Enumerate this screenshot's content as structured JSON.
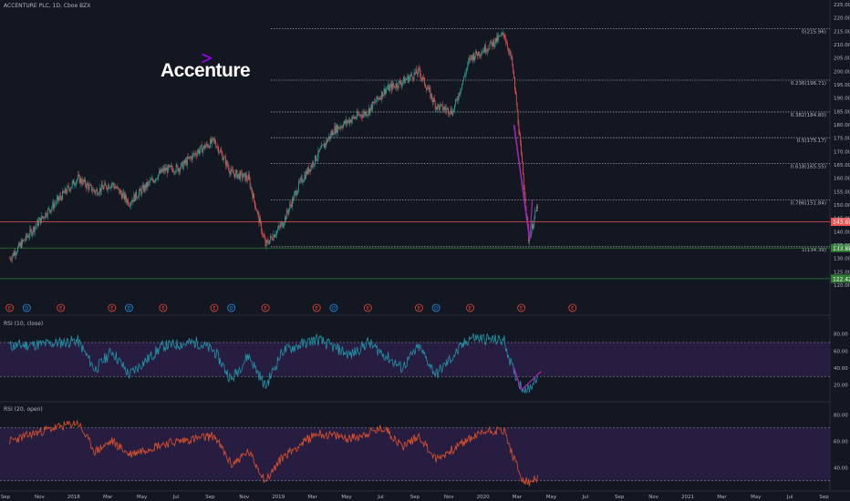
{
  "header": {
    "title": "ACCENTURE PLC, 1D, Cboe BZX"
  },
  "brand": {
    "name": "Accenture",
    "mark": ">"
  },
  "panes": {
    "rsi1_label": "RSI (10, close)",
    "rsi2_label": "RSI (20, open)"
  },
  "colors": {
    "background": "#131722",
    "up": "#26a69a",
    "down": "#ef5350",
    "rsi1": "#2196a8",
    "rsi2": "#e0522a",
    "band": "#2a1e45",
    "annotation": "#9c27b0"
  },
  "chart_data": [
    {
      "type": "candlestick",
      "ylim": [
        120,
        225
      ],
      "y_ticks": [
        "225.00",
        "220.00",
        "215.00",
        "210.00",
        "205.00",
        "200.00",
        "195.00",
        "190.00",
        "185.00",
        "180.00",
        "175.00",
        "170.00",
        "165.00",
        "160.00",
        "155.00",
        "150.00",
        "145.00",
        "140.00",
        "135.00",
        "130.00",
        "125.00",
        "120.00"
      ],
      "x_ticks": [
        "Sep",
        "Nov",
        "2018",
        "Mar",
        "May",
        "Jul",
        "Sep",
        "Nov",
        "2019",
        "Mar",
        "May",
        "Jul",
        "Sep",
        "Nov",
        "2020",
        "Mar",
        "May",
        "Jul",
        "Sep",
        "Nov",
        "2021",
        "Mar",
        "May",
        "Jul",
        "Sep"
      ],
      "close_path": [
        [
          "Sep 2017",
          130
        ],
        [
          "Oct 2017",
          138
        ],
        [
          "Nov 2017",
          146
        ],
        [
          "Dec 2017",
          153
        ],
        [
          "Jan 2018",
          160
        ],
        [
          "Feb 2018",
          155
        ],
        [
          "Mar 2018",
          158
        ],
        [
          "Apr 2018",
          151
        ],
        [
          "May 2018",
          157
        ],
        [
          "Jun 2018",
          163
        ],
        [
          "Jul 2018",
          164
        ],
        [
          "Aug 2018",
          170
        ],
        [
          "Sep 2018",
          174
        ],
        [
          "Oct 2018",
          162
        ],
        [
          "Nov 2018",
          160
        ],
        [
          "Dec 2018",
          135
        ],
        [
          "Jan 2019",
          143
        ],
        [
          "Feb 2019",
          158
        ],
        [
          "Mar 2019",
          168
        ],
        [
          "Apr 2019",
          178
        ],
        [
          "May 2019",
          182
        ],
        [
          "Jun 2019",
          185
        ],
        [
          "Jul 2019",
          193
        ],
        [
          "Aug 2019",
          196
        ],
        [
          "Sep 2019",
          200
        ],
        [
          "Oct 2019",
          187
        ],
        [
          "Nov 2019",
          185
        ],
        [
          "Dec 2019",
          205
        ],
        [
          "Jan 2020",
          209
        ],
        [
          "Feb 2020",
          214
        ],
        [
          "Feb 24 2020",
          203
        ],
        [
          "Mar 05 2020",
          180
        ],
        [
          "Mar 23 2020",
          137
        ],
        [
          "Apr 2020",
          151
        ]
      ],
      "fibonacci": [
        {
          "label": "0(215.96)",
          "value": 215.96
        },
        {
          "label": "0.236(196.71)",
          "value": 196.71
        },
        {
          "label": "0.382(184.80)",
          "value": 184.8
        },
        {
          "label": "0.5(175.17)",
          "value": 175.17
        },
        {
          "label": "0.618(165.55)",
          "value": 165.55
        },
        {
          "label": "0.786(151.84)",
          "value": 151.84
        },
        {
          "label": "1(134.39)",
          "value": 134.39
        }
      ],
      "price_markers": [
        {
          "label": "143.69",
          "value": 143.69,
          "color": "#ef5350"
        },
        {
          "label": "133.88",
          "value": 133.88,
          "color": "#2e7d32"
        },
        {
          "label": "122.42",
          "value": 122.42,
          "color": "#2e7d32"
        }
      ],
      "events": [
        {
          "label": "E",
          "date": "Sep 2017"
        },
        {
          "label": "D",
          "date": "Oct 2017"
        },
        {
          "label": "E",
          "date": "Dec 2017"
        },
        {
          "label": "E",
          "date": "Mar 2018"
        },
        {
          "label": "D",
          "date": "Apr 2018"
        },
        {
          "label": "E",
          "date": "Jun 2018"
        },
        {
          "label": "E",
          "date": "Sep 2018"
        },
        {
          "label": "D",
          "date": "Oct 2018"
        },
        {
          "label": "E",
          "date": "Dec 2018"
        },
        {
          "label": "E",
          "date": "Mar 2019"
        },
        {
          "label": "D",
          "date": "Apr 2019"
        },
        {
          "label": "E",
          "date": "Jun 2019"
        },
        {
          "label": "E",
          "date": "Sep 2019"
        },
        {
          "label": "D",
          "date": "Oct 2019"
        },
        {
          "label": "E",
          "date": "Dec 2019"
        },
        {
          "label": "E",
          "date": "Mar 2020"
        },
        {
          "label": "E",
          "date": "Jun 2020"
        }
      ]
    },
    {
      "type": "line",
      "series_name": "RSI (10, close)",
      "ylim": [
        10,
        85
      ],
      "y_ticks": [
        "80.00",
        "60.00",
        "40.00",
        "20.00"
      ],
      "levels": [
        70,
        30
      ],
      "path": [
        [
          "Sep 2017",
          66
        ],
        [
          "Nov 2017",
          68
        ],
        [
          "Jan 2018",
          72
        ],
        [
          "Feb 2018",
          38
        ],
        [
          "Mar 2018",
          60
        ],
        [
          "Apr 2018",
          32
        ],
        [
          "Jun 2018",
          66
        ],
        [
          "Aug 2018",
          70
        ],
        [
          "Sep 2018",
          60
        ],
        [
          "Oct 2018",
          26
        ],
        [
          "Nov 2018",
          55
        ],
        [
          "Dec 2018",
          18
        ],
        [
          "Jan 2019",
          60
        ],
        [
          "Mar 2019",
          74
        ],
        [
          "May 2019",
          55
        ],
        [
          "Jun 2019",
          70
        ],
        [
          "Aug 2019",
          40
        ],
        [
          "Sep 2019",
          65
        ],
        [
          "Oct 2019",
          32
        ],
        [
          "Dec 2019",
          76
        ],
        [
          "Feb 2020",
          72
        ],
        [
          "Feb 24 2020",
          40
        ],
        [
          "Mar 2020",
          18
        ],
        [
          "Mar 23 2020",
          14
        ],
        [
          "Apr 2020",
          34
        ]
      ]
    },
    {
      "type": "line",
      "series_name": "RSI (20, open)",
      "ylim": [
        25,
        85
      ],
      "y_ticks": [
        "80.00",
        "60.00",
        "40.00"
      ],
      "levels": [
        70,
        30
      ],
      "path": [
        [
          "Sep 2017",
          60
        ],
        [
          "Nov 2017",
          68
        ],
        [
          "Jan 2018",
          74
        ],
        [
          "Feb 2018",
          52
        ],
        [
          "Mar 2018",
          60
        ],
        [
          "Apr 2018",
          50
        ],
        [
          "Jun 2018",
          58
        ],
        [
          "Aug 2018",
          62
        ],
        [
          "Sep 2018",
          64
        ],
        [
          "Oct 2018",
          42
        ],
        [
          "Nov 2018",
          52
        ],
        [
          "Dec 2018",
          30
        ],
        [
          "Jan 2019",
          48
        ],
        [
          "Mar 2019",
          66
        ],
        [
          "May 2019",
          62
        ],
        [
          "Jul 2019",
          70
        ],
        [
          "Aug 2019",
          56
        ],
        [
          "Sep 2019",
          64
        ],
        [
          "Oct 2019",
          46
        ],
        [
          "Dec 2019",
          62
        ],
        [
          "Jan 2020",
          68
        ],
        [
          "Feb 2020",
          68
        ],
        [
          "Feb 24 2020",
          50
        ],
        [
          "Mar 2020",
          32
        ],
        [
          "Mar 23 2020",
          28
        ],
        [
          "Apr 2020",
          32
        ]
      ]
    }
  ]
}
